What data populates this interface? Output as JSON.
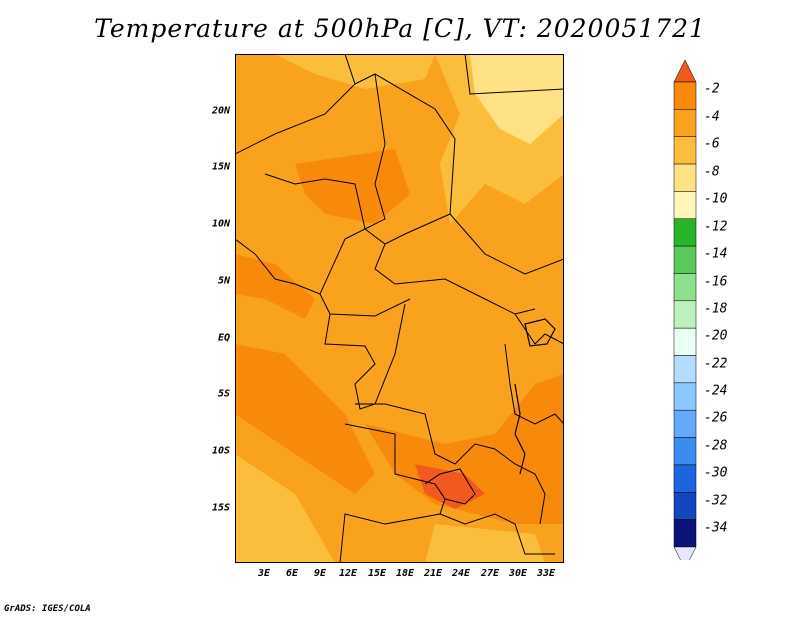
{
  "title": "Temperature at 500hPa [C], VT: 2020051721",
  "footer": "GrADS: IGES/COLA",
  "map": {
    "lat_labels": [
      "20N",
      "15N",
      "10N",
      "5N",
      "EQ",
      "5S",
      "10S",
      "15S"
    ],
    "lon_labels": [
      "3E",
      "6E",
      "9E",
      "12E",
      "15E",
      "18E",
      "21E",
      "24E",
      "27E",
      "30E",
      "33E"
    ]
  },
  "colorbar": {
    "labels": [
      "-2",
      "-4",
      "-6",
      "-8",
      "-10",
      "-12",
      "-14",
      "-16",
      "-18",
      "-20",
      "-22",
      "-24",
      "-26",
      "-28",
      "-30",
      "-32",
      "-34"
    ],
    "colors": [
      "#f05a1e",
      "#f78a0a",
      "#f9a21e",
      "#fbbe3c",
      "#fde184",
      "#fef6b8",
      "#28b428",
      "#5ac85a",
      "#8ee08e",
      "#bcf0bc",
      "#e8fff4",
      "#b4dcff",
      "#8cc8ff",
      "#64aaf8",
      "#3c8cf0",
      "#1e64dc",
      "#1446be",
      "#0a1478",
      "#e6e6ff"
    ]
  },
  "colors": {
    "frame": "#000000",
    "boundary": "#000000"
  }
}
